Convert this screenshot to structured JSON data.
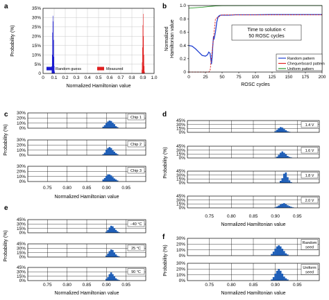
{
  "panel_letters": [
    "a",
    "b",
    "c",
    "d",
    "e",
    "f"
  ],
  "colors": {
    "blue_bar": "#1f5fb8",
    "random_guess": "#1a1ad0",
    "measured": "#e02020",
    "random_pattern": "#1f3fd0",
    "chequerboard": "#e02020",
    "uniform": "#2a9a2a",
    "grid": "#000000"
  },
  "chart_data": [
    {
      "id": "a",
      "type": "bar",
      "xlabel": "Normalized Hamiltonian value",
      "ylabel": "Probability (%)",
      "xlim": [
        0,
        1
      ],
      "ylim": [
        0,
        35
      ],
      "xticks": [
        "0",
        "0.1",
        "0.2",
        "0.3",
        "0.4",
        "0.5",
        "0.6",
        "0.7",
        "0.8",
        "0.9",
        "1.0"
      ],
      "yticks": [
        "0",
        "5%",
        "10%",
        "15%",
        "20%",
        "25%",
        "30%",
        "35%"
      ],
      "grid": true,
      "legend": [
        "Random guess",
        "Measured"
      ],
      "series": [
        {
          "name": "Random guess",
          "color": "#1a1ad0",
          "x": [
            0.08,
            0.083,
            0.086,
            0.089,
            0.092,
            0.095,
            0.098,
            0.101,
            0.104
          ],
          "values": [
            4,
            10,
            22,
            31,
            28,
            18,
            9,
            4,
            1
          ]
        },
        {
          "name": "Measured",
          "color": "#e02020",
          "x": [
            0.89,
            0.893,
            0.896,
            0.899,
            0.902,
            0.905,
            0.908,
            0.911,
            0.914
          ],
          "values": [
            2,
            6,
            14,
            26,
            32,
            20,
            10,
            4,
            1
          ]
        }
      ]
    },
    {
      "id": "b",
      "type": "line",
      "xlabel": "ROSC cycles",
      "ylabel": "Normalized Hamiltonian value",
      "xlim": [
        0,
        200
      ],
      "ylim": [
        0,
        1.0
      ],
      "xticks": [
        "0",
        "25",
        "50",
        "75",
        "100",
        "125",
        "150",
        "175",
        "200"
      ],
      "yticks": [
        "0",
        "0.2",
        "0.4",
        "0.6",
        "0.8",
        "1.0"
      ],
      "annotation": "Time to solution < 50 ROSC cycles",
      "legend": [
        "Random pattern",
        "Chequerboard pattern",
        "Uniform pattern"
      ],
      "series": [
        {
          "name": "Random pattern",
          "color": "#1f3fd0",
          "x": [
            0,
            5,
            10,
            15,
            20,
            25,
            28,
            30,
            32,
            33,
            34,
            35,
            36,
            37,
            38,
            40,
            42,
            44,
            46,
            48,
            50,
            60,
            70,
            80,
            100,
            120,
            140,
            160,
            180,
            200
          ],
          "values": [
            0.4,
            0.39,
            0.35,
            0.3,
            0.25,
            0.24,
            0.26,
            0.3,
            0.28,
            0.2,
            0.12,
            0.22,
            0.4,
            0.52,
            0.5,
            0.6,
            0.75,
            0.83,
            0.85,
            0.855,
            0.855,
            0.855,
            0.86,
            0.86,
            0.86,
            0.865,
            0.865,
            0.865,
            0.865,
            0.865
          ]
        },
        {
          "name": "Chequerboard pattern",
          "color": "#e02020",
          "x": [
            0,
            30,
            32,
            34,
            36,
            38,
            40,
            50,
            100,
            200
          ],
          "values": [
            0.0,
            0.0,
            0.02,
            0.22,
            0.4,
            0.6,
            0.8,
            0.86,
            0.86,
            0.86
          ]
        },
        {
          "name": "Uniform pattern",
          "color": "#2a9a2a",
          "x": [
            0,
            20,
            30,
            35,
            40,
            50,
            100,
            200
          ],
          "values": [
            0.96,
            0.975,
            0.985,
            0.99,
            0.995,
            0.998,
            1.0,
            1.0
          ]
        }
      ]
    },
    {
      "id": "c",
      "type": "bar",
      "xlabel": "Normalized Hamiltonian value",
      "ylabel": "Probability (%)",
      "xlim": [
        0.7,
        1.0
      ],
      "xticks": [
        "0.75",
        "0.80",
        "0.85",
        "0.90",
        "0.95"
      ],
      "yticks": [
        "0%",
        "10%",
        "20%",
        "30%"
      ],
      "ylim": [
        0,
        30
      ],
      "subplots": [
        {
          "label": "Chip 1",
          "x": [
            0.892,
            0.896,
            0.9,
            0.904,
            0.908,
            0.912,
            0.916,
            0.92,
            0.924,
            0.928
          ],
          "values": [
            3,
            6,
            10,
            13,
            15,
            14,
            11,
            8,
            4,
            2
          ]
        },
        {
          "label": "Chip 2",
          "x": [
            0.892,
            0.896,
            0.9,
            0.904,
            0.908,
            0.912,
            0.916,
            0.92,
            0.924,
            0.928
          ],
          "values": [
            2,
            5,
            11,
            14,
            16,
            14,
            10,
            7,
            4,
            2
          ]
        },
        {
          "label": "Chip 3",
          "x": [
            0.892,
            0.896,
            0.9,
            0.904,
            0.908,
            0.912,
            0.916,
            0.92,
            0.924,
            0.928
          ],
          "values": [
            4,
            7,
            11,
            14,
            14,
            12,
            9,
            6,
            4,
            2
          ]
        }
      ]
    },
    {
      "id": "d",
      "type": "bar",
      "xlabel": "Normalized Hamiltonian value",
      "ylabel": "Probability (%)",
      "xlim": [
        0.7,
        1.0
      ],
      "xticks": [
        "0.75",
        "0.80",
        "0.85",
        "0.90",
        "0.95"
      ],
      "yticks": [
        "0%",
        "15%",
        "30%",
        "45%"
      ],
      "ylim": [
        0,
        45
      ],
      "subplots": [
        {
          "label": "1.4  V",
          "x": [
            0.9,
            0.904,
            0.908,
            0.912,
            0.916,
            0.92,
            0.924,
            0.928,
            0.932
          ],
          "values": [
            4,
            10,
            16,
            20,
            18,
            13,
            8,
            4,
            2
          ]
        },
        {
          "label": "1.6 V",
          "x": [
            0.904,
            0.908,
            0.912,
            0.916,
            0.92,
            0.924,
            0.928,
            0.932,
            0.936
          ],
          "values": [
            5,
            12,
            20,
            25,
            20,
            14,
            8,
            4,
            2
          ]
        },
        {
          "label": "1.8 V",
          "x": [
            0.912,
            0.916,
            0.92,
            0.924,
            0.928,
            0.932,
            0.936
          ],
          "values": [
            8,
            18,
            35,
            40,
            22,
            10,
            3
          ]
        },
        {
          "label": "2.0 V",
          "x": [
            0.9,
            0.904,
            0.908,
            0.912,
            0.916,
            0.92,
            0.924,
            0.928,
            0.932,
            0.936,
            0.94
          ],
          "values": [
            2,
            5,
            9,
            13,
            16,
            18,
            14,
            10,
            7,
            4,
            2
          ]
        }
      ]
    },
    {
      "id": "e",
      "type": "bar",
      "xlabel": "Normalized Hamiltonian value",
      "ylabel": "Probability (%)",
      "xlim": [
        0.7,
        1.0
      ],
      "xticks": [
        "0.75",
        "0.80",
        "0.85",
        "0.90",
        "0.95"
      ],
      "yticks": [
        "0%",
        "15%",
        "30%",
        "45%"
      ],
      "ylim": [
        0,
        45
      ],
      "subplots": [
        {
          "label": "−40 °C",
          "x": [
            0.9,
            0.904,
            0.908,
            0.912,
            0.916,
            0.92,
            0.924,
            0.928,
            0.932
          ],
          "values": [
            4,
            10,
            18,
            24,
            22,
            16,
            10,
            5,
            2
          ]
        },
        {
          "label": "25 °C",
          "x": [
            0.9,
            0.904,
            0.908,
            0.912,
            0.916,
            0.92,
            0.924,
            0.928,
            0.932
          ],
          "values": [
            5,
            12,
            20,
            26,
            24,
            16,
            9,
            4,
            2
          ]
        },
        {
          "label": "90 °C",
          "x": [
            0.9,
            0.904,
            0.908,
            0.912,
            0.916,
            0.92,
            0.924,
            0.928,
            0.932
          ],
          "values": [
            6,
            12,
            22,
            28,
            22,
            15,
            8,
            4,
            2
          ]
        }
      ]
    },
    {
      "id": "f",
      "type": "bar",
      "xlabel": "Normalized Hamiltonian value",
      "ylabel": "Probability (%)",
      "xlim": [
        0.7,
        1.0
      ],
      "xticks": [
        "0.75",
        "0.80",
        "0.85",
        "0.90",
        "0.95"
      ],
      "yticks": [
        "0%",
        "10%",
        "20%",
        "30%"
      ],
      "ylim": [
        0,
        30
      ],
      "subplots": [
        {
          "label": "Random seed",
          "x": [
            0.892,
            0.896,
            0.9,
            0.904,
            0.908,
            0.912,
            0.916,
            0.92,
            0.924,
            0.928
          ],
          "values": [
            3,
            7,
            12,
            16,
            18,
            16,
            12,
            8,
            4,
            2
          ]
        },
        {
          "label": "Uniform seed",
          "x": [
            0.892,
            0.896,
            0.9,
            0.904,
            0.908,
            0.912,
            0.916,
            0.92,
            0.924,
            0.928
          ],
          "values": [
            2,
            6,
            12,
            17,
            20,
            17,
            12,
            7,
            4,
            2
          ]
        }
      ]
    }
  ]
}
